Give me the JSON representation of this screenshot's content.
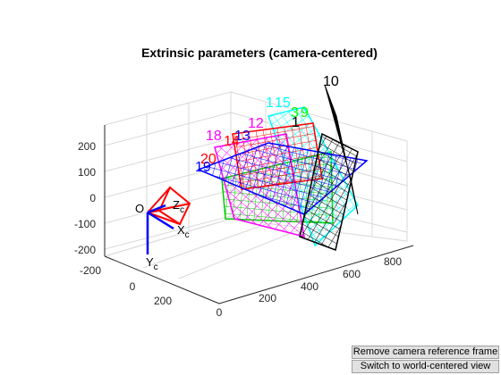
{
  "figure": {
    "title": "Extrinsic parameters (camera-centered)"
  },
  "axes": {
    "y_ticks": [
      "200",
      "100",
      "0",
      "-100",
      "-200"
    ],
    "x_ticks": [
      "-200",
      "0",
      "200"
    ],
    "z_ticks": [
      "0",
      "200",
      "400",
      "600",
      "800"
    ]
  },
  "camera": {
    "origin": "O",
    "xc": "X",
    "yc": "Y",
    "zc": "Z",
    "sub": "c",
    "color": "#ff0000",
    "axis_color": "#0000ff"
  },
  "planes": [
    {
      "label": "1",
      "color": "#00ffff"
    },
    {
      "label": "15",
      "color": "#00ffff"
    },
    {
      "label": "3",
      "color": "#00ff00"
    },
    {
      "label": "9",
      "color": "#00ff00"
    },
    {
      "label": "10",
      "color": "#000000"
    },
    {
      "label": "12",
      "color": "#ff00ff"
    },
    {
      "label": "13",
      "color": "#0000ff"
    },
    {
      "label": "14",
      "color": "#ff0000"
    },
    {
      "label": "18",
      "color": "#ff00ff"
    },
    {
      "label": "20",
      "color": "#ff0000"
    },
    {
      "label": "19",
      "color": "#0000ff"
    },
    {
      "label": "1",
      "color": "#000000"
    }
  ],
  "buttons": {
    "remove_label": "Remove camera reference frame",
    "switch_label": "Switch to world-centered view"
  }
}
